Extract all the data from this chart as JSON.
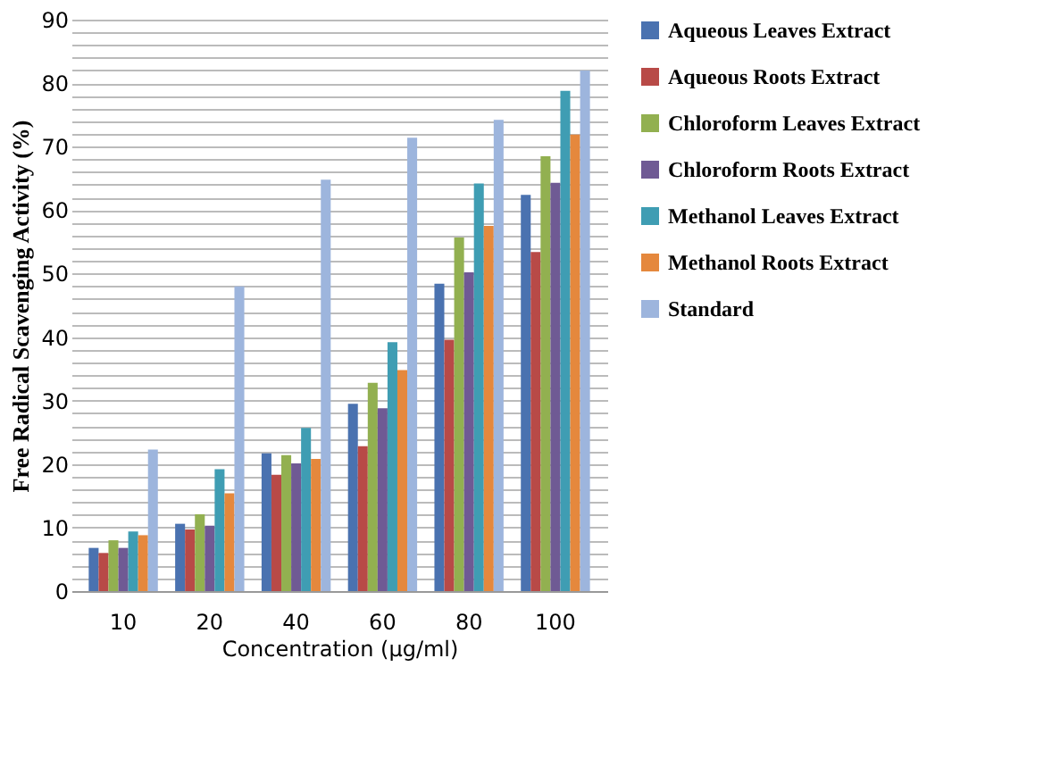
{
  "chart_data": {
    "type": "bar",
    "xlabel": "Concentration  (µg/ml)",
    "ylabel": "Free Radical Scavenging Activity (%)",
    "categories": [
      "10",
      "20",
      "40",
      "60",
      "80",
      "100"
    ],
    "series": [
      {
        "name": "Aqueous Leaves Extract",
        "color": "#4a72b0",
        "values": [
          6.8,
          10.6,
          21.7,
          29.5,
          48.4,
          62.4
        ]
      },
      {
        "name": "Aqueous Roots Extract",
        "color": "#b84a47",
        "values": [
          6.0,
          9.7,
          18.3,
          22.8,
          39.6,
          53.4
        ]
      },
      {
        "name": "Chloroform  Leaves Extract",
        "color": "#92b050",
        "values": [
          8.0,
          12.1,
          21.4,
          32.8,
          55.7,
          68.5
        ]
      },
      {
        "name": "Chloroform Roots Extract",
        "color": "#6f5a94",
        "values": [
          6.8,
          10.3,
          20.1,
          28.8,
          50.2,
          64.3
        ]
      },
      {
        "name": "Methanol Leaves Extract",
        "color": "#3f9db3",
        "values": [
          9.4,
          19.2,
          25.7,
          39.2,
          64.2,
          78.8
        ]
      },
      {
        "name": "Methanol Roots Extract",
        "color": "#e5883d",
        "values": [
          8.8,
          15.4,
          20.8,
          34.8,
          57.5,
          71.9
        ]
      },
      {
        "name": "Standard",
        "color": "#9db5dd",
        "values": [
          22.3,
          48.0,
          64.8,
          71.4,
          74.2,
          82.0
        ]
      }
    ],
    "ylim": [
      0,
      90
    ],
    "yticks": [
      0,
      {
        "value": 2,
        "label": null
      },
      {
        "value": 4,
        "label": null
      },
      {
        "value": 6,
        "label": null
      },
      {
        "value": 8,
        "label": null
      },
      10,
      {
        "value": 12,
        "label": null
      },
      {
        "value": 14,
        "label": null
      },
      {
        "value": 16,
        "label": null
      },
      {
        "value": 18,
        "label": null
      },
      20,
      {
        "value": 22,
        "label": null
      },
      {
        "value": 24,
        "label": null
      },
      {
        "value": 26,
        "label": null
      },
      {
        "value": 28,
        "label": null
      },
      30,
      {
        "value": 32,
        "label": null
      },
      {
        "value": 34,
        "label": null
      },
      {
        "value": 36,
        "label": null
      },
      {
        "value": 38,
        "label": null
      },
      40,
      {
        "value": 42,
        "label": null
      },
      {
        "value": 44,
        "label": null
      },
      {
        "value": 46,
        "label": null
      },
      {
        "value": 48,
        "label": null
      },
      50,
      {
        "value": 52,
        "label": null
      },
      {
        "value": 54,
        "label": null
      },
      {
        "value": 56,
        "label": null
      },
      {
        "value": 58,
        "label": null
      },
      60,
      {
        "value": 62,
        "label": null
      },
      {
        "value": 64,
        "label": null
      },
      {
        "value": 66,
        "label": null
      },
      {
        "value": 68,
        "label": null
      },
      70,
      {
        "value": 72,
        "label": null
      },
      {
        "value": 74,
        "label": null
      },
      {
        "value": 76,
        "label": null
      },
      {
        "value": 78,
        "label": null
      },
      80,
      {
        "value": 82,
        "label": null
      },
      {
        "value": 84,
        "label": null
      },
      {
        "value": 86,
        "label": null
      },
      {
        "value": 88,
        "label": null
      },
      90
    ],
    "grid": "y",
    "legend": "right"
  }
}
